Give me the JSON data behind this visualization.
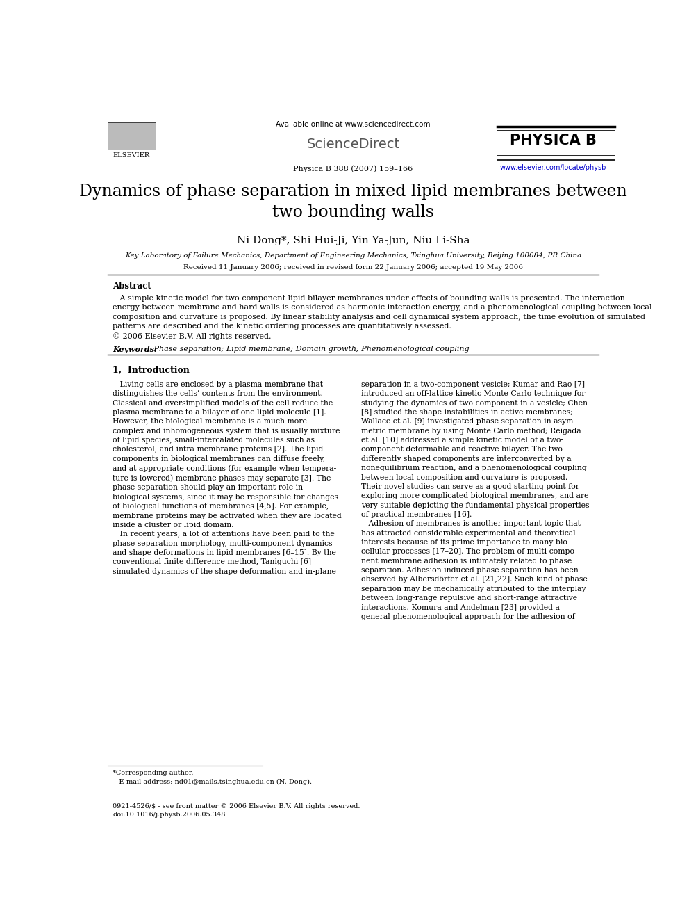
{
  "page_width": 9.92,
  "page_height": 13.23,
  "bg_color": "#ffffff",
  "header": {
    "available_online_text": "Available online at www.sciencedirect.com",
    "journal_ref": "Physica B 388 (2007) 159–166",
    "url": "www.elsevier.com/locate/physb",
    "elsevier_label": "ELSEVIER",
    "sciencedirect_label": "ScienceDirect",
    "physica_label": "PHYSICA B"
  },
  "title": "Dynamics of phase separation in mixed lipid membranes between\ntwo bounding walls",
  "authors": "Ni Dong*, Shi Hui-Ji, Yin Ya-Jun, Niu Li-Sha",
  "affiliation": "Key Laboratory of Failure Mechanics, Department of Engineering Mechanics, Tsinghua University, Beijing 100084, PR China",
  "received": "Received 11 January 2006; received in revised form 22 January 2006; accepted 19 May 2006",
  "abstract_heading": "Abstract",
  "abstract_text": "   A simple kinetic model for two-component lipid bilayer membranes under effects of bounding walls is presented. The interaction\nenergy between membrane and hard walls is considered as harmonic interaction energy, and a phenomenological coupling between local\ncomposition and curvature is proposed. By linear stability analysis and cell dynamical system approach, the time evolution of simulated\npatterns are described and the kinetic ordering processes are quantitatively assessed.\n© 2006 Elsevier B.V. All rights reserved.",
  "keywords_label": "Keywords:",
  "keywords": " Phase separation; Lipid membrane; Domain growth; Phenomenological coupling",
  "section1_heading": "1,  Introduction",
  "section1_left": "   Living cells are enclosed by a plasma membrane that\ndistinguishes the cells’ contents from the environment.\nClassical and oversimplified models of the cell reduce the\nplasma membrane to a bilayer of one lipid molecule [1].\nHowever, the biological membrane is a much more\ncomplex and inhomogeneous system that is usually mixture\nof lipid species, small-intercalated molecules such as\ncholesterol, and intra-membrane proteins [2]. The lipid\ncomponents in biological membranes can diffuse freely,\nand at appropriate conditions (for example when tempera-\nture is lowered) membrane phases may separate [3]. The\nphase separation should play an important role in\nbiological systems, since it may be responsible for changes\nof biological functions of membranes [4,5]. For example,\nmembrane proteins may be activated when they are located\ninside a cluster or lipid domain.\n   In recent years, a lot of attentions have been paid to the\nphase separation morphology, multi-component dynamics\nand shape deformations in lipid membranes [6–15]. By the\nconventional finite difference method, Taniguchi [6]\nsimulated dynamics of the shape deformation and in-plane",
  "section1_right": "separation in a two-component vesicle; Kumar and Rao [7]\nintroduced an off-lattice kinetic Monte Carlo technique for\nstudying the dynamics of two-component in a vesicle; Chen\n[8] studied the shape instabilities in active membranes;\nWallace et al. [9] investigated phase separation in asym-\nmetric membrane by using Monte Carlo method; Reigada\net al. [10] addressed a simple kinetic model of a two-\ncomponent deformable and reactive bilayer. The two\ndifferently shaped components are interconverted by a\nnonequilibrium reaction, and a phenomenological coupling\nbetween local composition and curvature is proposed.\nTheir novel studies can serve as a good starting point for\nexploring more complicated biological membranes, and are\nvery suitable depicting the fundamental physical properties\nof practical membranes [16].\n   Adhesion of membranes is another important topic that\nhas attracted considerable experimental and theoretical\ninterests because of its prime importance to many bio-\ncellular processes [17–20]. The problem of multi-compo-\nnent membrane adhesion is intimately related to phase\nseparation. Adhesion induced phase separation has been\nobserved by Albersdörfer et al. [21,22]. Such kind of phase\nseparation may be mechanically attributed to the interplay\nbetween long-range repulsive and short-range attractive\ninteractions. Komura and Andelman [23] provided a\ngeneral phenomenological approach for the adhesion of",
  "footer_left": "0921-4526/$ - see front matter © 2006 Elsevier B.V. All rights reserved.\ndoi:10.1016/j.physb.2006.05.348",
  "footer_footnote": "*Corresponding author.\n   E-mail address: nd01@mails.tsinghua.edu.cn (N. Dong)."
}
